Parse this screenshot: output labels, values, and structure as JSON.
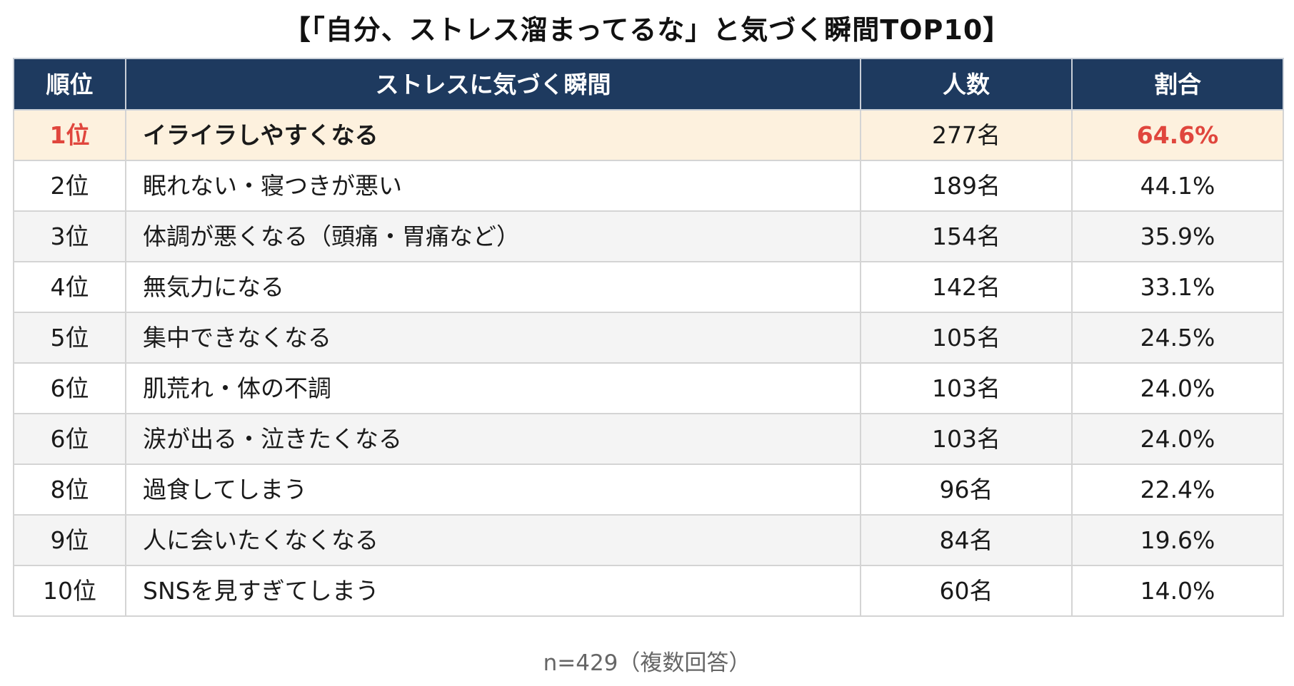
{
  "colors": {
    "header_bg": "#1e3a5f",
    "header_text": "#ffffff",
    "highlight_bg": "#fdf1de",
    "highlight_text": "#e0463d",
    "row_alt_bg": "#f4f4f4",
    "row_bg": "#ffffff",
    "border": "#d4d4d4"
  },
  "chart_data": {
    "type": "table",
    "title": "【「自分、ストレス溜まってるな」と気づく瞬間TOP10】",
    "columns": [
      "順位",
      "ストレスに気づく瞬間",
      "人数",
      "割合"
    ],
    "rows": [
      {
        "rank": "1位",
        "moment": "イライラしやすくなる",
        "count": "277名",
        "percent": "64.6%",
        "highlight": true
      },
      {
        "rank": "2位",
        "moment": "眠れない・寝つきが悪い",
        "count": "189名",
        "percent": "44.1%",
        "highlight": false
      },
      {
        "rank": "3位",
        "moment": "体調が悪くなる（頭痛・胃痛など）",
        "count": "154名",
        "percent": "35.9%",
        "highlight": false
      },
      {
        "rank": "4位",
        "moment": "無気力になる",
        "count": "142名",
        "percent": "33.1%",
        "highlight": false
      },
      {
        "rank": "5位",
        "moment": "集中できなくなる",
        "count": "105名",
        "percent": "24.5%",
        "highlight": false
      },
      {
        "rank": "6位",
        "moment": "肌荒れ・体の不調",
        "count": "103名",
        "percent": "24.0%",
        "highlight": false
      },
      {
        "rank": "6位",
        "moment": "涙が出る・泣きたくなる",
        "count": "103名",
        "percent": "24.0%",
        "highlight": false
      },
      {
        "rank": "8位",
        "moment": "過食してしまう",
        "count": "96名",
        "percent": "22.4%",
        "highlight": false
      },
      {
        "rank": "9位",
        "moment": "人に会いたくなくなる",
        "count": "84名",
        "percent": "19.6%",
        "highlight": false
      },
      {
        "rank": "10位",
        "moment": "SNSを見すぎてしまう",
        "count": "60名",
        "percent": "14.0%",
        "highlight": false
      }
    ],
    "note": "n=429（複数回答）"
  }
}
